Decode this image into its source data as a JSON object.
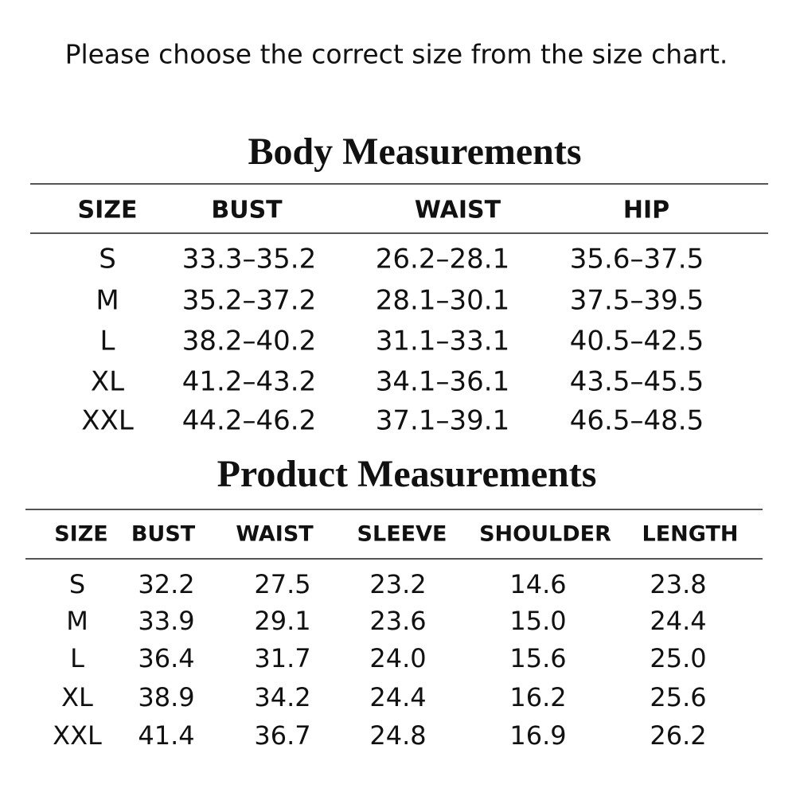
{
  "header": {
    "text": "Please choose the correct size from the size chart."
  },
  "body_table": {
    "title": "Body Measurements",
    "columns": [
      "SIZE",
      "BUST",
      "WAIST",
      "HIP"
    ],
    "rows": [
      [
        "S",
        "33.3–35.2",
        "26.2–28.1",
        "35.6–37.5"
      ],
      [
        "M",
        "35.2–37.2",
        "28.1–30.1",
        "37.5–39.5"
      ],
      [
        "L",
        "38.2–40.2",
        "31.1–33.1",
        "40.5–42.5"
      ],
      [
        "XL",
        "41.2–43.2",
        "34.1–36.1",
        "43.5–45.5"
      ],
      [
        "XXL",
        "44.2–46.2",
        "37.1–39.1",
        "46.5–48.5"
      ]
    ]
  },
  "product_table": {
    "title": "Product Measurements",
    "columns": [
      "SIZE",
      "BUST",
      "WAIST",
      "SLEEVE",
      "SHOULDER",
      "LENGTH"
    ],
    "rows": [
      [
        "S",
        "32.2",
        "27.5",
        "23.2",
        "14.6",
        "23.8"
      ],
      [
        "M",
        "33.9",
        "29.1",
        "23.6",
        "15.0",
        "24.4"
      ],
      [
        "L",
        "36.4",
        "31.7",
        "24.0",
        "15.6",
        "25.0"
      ],
      [
        "XL",
        "38.9",
        "34.2",
        "24.4",
        "16.2",
        "25.6"
      ],
      [
        "XXL",
        "41.4",
        "36.7",
        "24.8",
        "16.9",
        "26.2"
      ]
    ]
  }
}
